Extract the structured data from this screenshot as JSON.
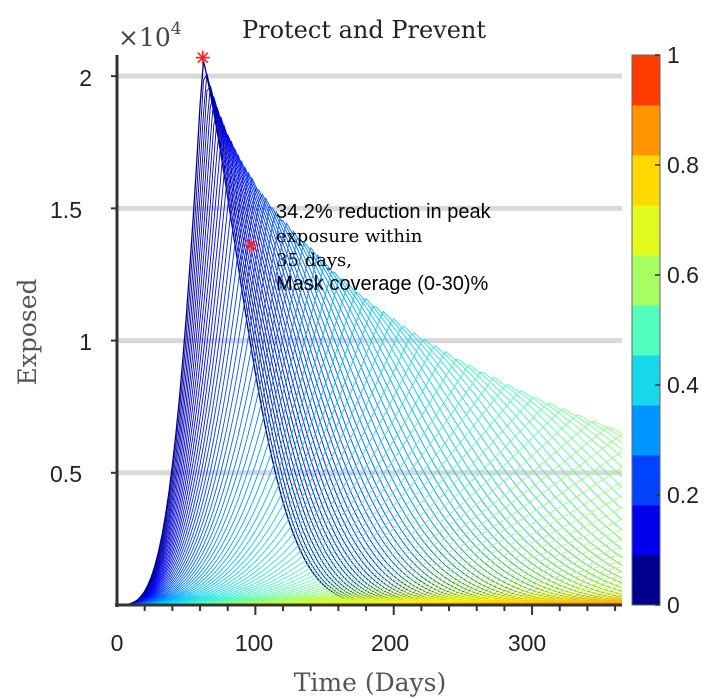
{
  "chart_data": {
    "type": "line",
    "title": "Protect and Prevent",
    "xlabel": "Time (Days)",
    "ylabel": "Exposed",
    "y_multiplier_label": "×10",
    "y_multiplier_exp": "4",
    "xlim": [
      0,
      365
    ],
    "ylim": [
      0,
      20800
    ],
    "xticks": [
      0,
      100,
      200,
      300
    ],
    "xtick_labels": [
      "0",
      "100",
      "200",
      "300"
    ],
    "yticks": [
      5000,
      10000,
      15000,
      20000
    ],
    "ytick_labels": [
      "0.5",
      "1",
      "1.5",
      "2"
    ],
    "grid": "horizontal",
    "colormap": "jet",
    "colorbar": {
      "levels": 11,
      "ticks": [
        0,
        0.2,
        0.4,
        0.6,
        0.8,
        1
      ],
      "tick_labels": [
        "0",
        "0.2",
        "0.4",
        "0.6",
        "0.8",
        "1"
      ]
    },
    "curve_family": {
      "count": 100,
      "parameter_range": [
        0,
        1
      ],
      "first_curve": {
        "peak_day": 62,
        "peak_value": 20700,
        "value_at_day_365": 200
      },
      "peak_day_at_30pct": 97,
      "peak_value_at_30pct": 13600
    },
    "markers": [
      {
        "label": "peak (0% mask coverage)",
        "x": 62,
        "y": 20700,
        "color": "#ff2020"
      },
      {
        "label": "peak (30% mask coverage)",
        "x": 97,
        "y": 13600,
        "color": "#ff2020"
      }
    ],
    "annotation": {
      "line1": "34.2% reduction in peak",
      "line2": "exposure within",
      "line3": "35 days,",
      "line4": "Mask coverage (0-30)%"
    }
  }
}
